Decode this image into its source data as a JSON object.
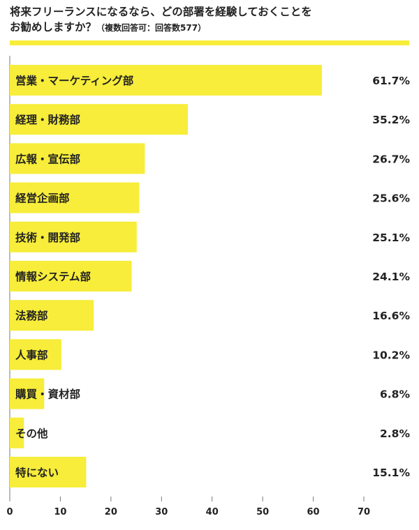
{
  "title_line1": "将来フリーランスになるなら、どの部署を経験しておくことを",
  "title_line2": "お勧めしますか？",
  "title_note": "（複数回答可：回答数577）",
  "colors": {
    "bar": "#f7ed3a",
    "rule": "#f7ed3a",
    "axis": "#777777",
    "grid": "#dcdcdc",
    "text": "#222222"
  },
  "chart_data": {
    "type": "bar",
    "orientation": "horizontal",
    "categories": [
      "営業・マーケティング部",
      "経理・財務部",
      "広報・宣伝部",
      "経営企画部",
      "技術・開発部",
      "情報システム部",
      "法務部",
      "人事部",
      "購買・資材部",
      "その他",
      "特にない"
    ],
    "values": [
      61.7,
      35.2,
      26.7,
      25.6,
      25.1,
      24.1,
      16.6,
      10.2,
      6.8,
      2.8,
      15.1
    ],
    "value_labels": [
      "61.7%",
      "35.2%",
      "26.7%",
      "25.6%",
      "25.1%",
      "24.1%",
      "16.6%",
      "10.2%",
      "6.8%",
      "2.8%",
      "15.1%"
    ],
    "xlim": [
      0,
      70
    ],
    "xticks": [
      0,
      10,
      20,
      30,
      40,
      50,
      60,
      70
    ],
    "grid": false
  }
}
